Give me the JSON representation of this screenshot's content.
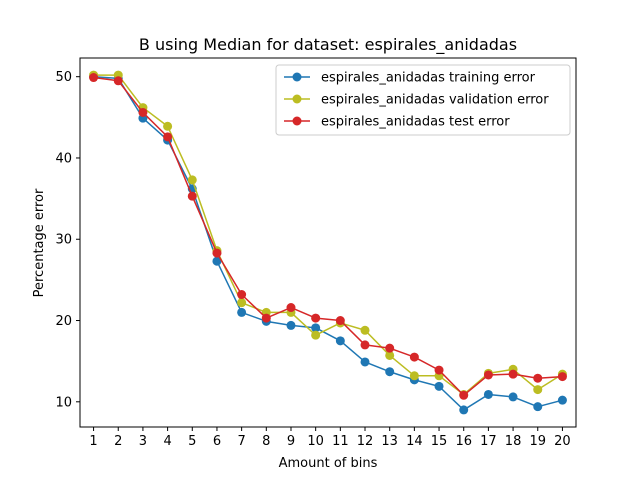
{
  "chart_data": {
    "type": "line",
    "title": "B using Median for dataset: espirales_anidadas",
    "xlabel": "Amount of bins",
    "ylabel": "Percentage error",
    "x": [
      1,
      2,
      3,
      4,
      5,
      6,
      7,
      8,
      9,
      10,
      11,
      12,
      13,
      14,
      15,
      16,
      17,
      18,
      19,
      20
    ],
    "xlim": [
      0.45,
      20.55
    ],
    "ylim": [
      6.9,
      52.3
    ],
    "yticks": [
      10,
      20,
      30,
      40,
      50
    ],
    "grid": false,
    "legend_position": "top-right",
    "series": [
      {
        "name": "espirales_anidadas training error",
        "color": "#1f77b4",
        "values": [
          50.0,
          49.8,
          44.9,
          42.2,
          36.2,
          27.3,
          21.0,
          19.9,
          19.4,
          19.1,
          17.5,
          14.9,
          13.7,
          12.7,
          11.9,
          9.0,
          10.9,
          10.6,
          9.4,
          10.2
        ]
      },
      {
        "name": "espirales_anidadas validation error",
        "color": "#bcbd22",
        "values": [
          50.2,
          50.2,
          46.2,
          43.9,
          37.3,
          28.6,
          22.2,
          21.0,
          21.0,
          18.2,
          19.7,
          18.8,
          15.7,
          13.2,
          13.2,
          10.9,
          13.5,
          14.0,
          11.5,
          13.4
        ]
      },
      {
        "name": "espirales_anidadas test error",
        "color": "#d62728",
        "values": [
          49.9,
          49.5,
          45.6,
          42.6,
          35.3,
          28.3,
          23.2,
          20.3,
          21.6,
          20.3,
          20.0,
          17.0,
          16.6,
          15.5,
          13.9,
          10.8,
          13.3,
          13.4,
          12.9,
          13.1
        ]
      }
    ]
  }
}
